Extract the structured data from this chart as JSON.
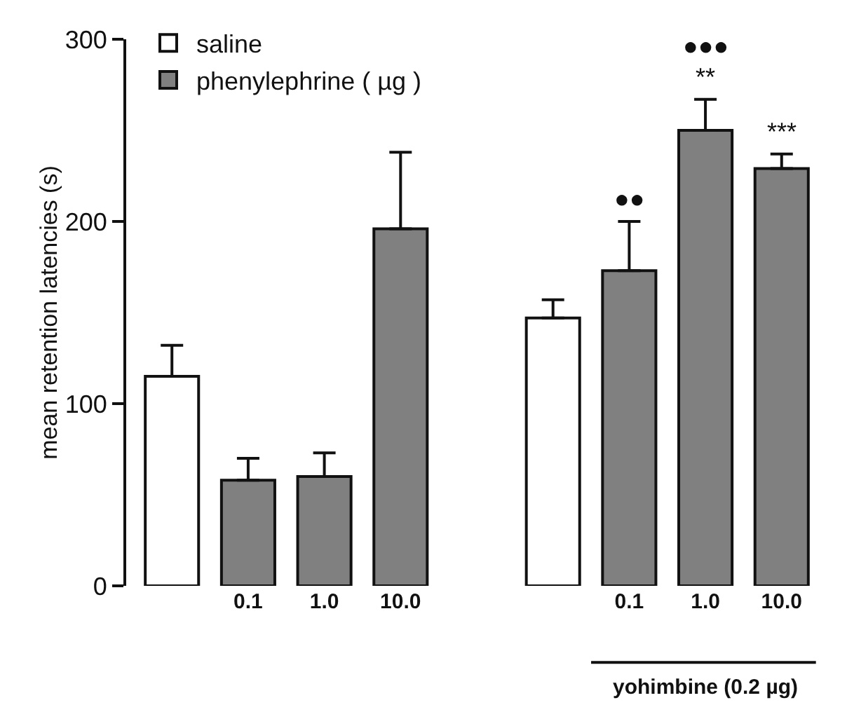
{
  "chart_data": {
    "type": "bar",
    "ylabel": "mean retention latencies (s)",
    "categories": [
      null,
      "0.1",
      "1.0",
      "10.0",
      null,
      null,
      "0.1",
      "1.0",
      "10.0"
    ],
    "series": [
      {
        "name": "saline",
        "color": "#ffffff",
        "values": [
          115,
          null,
          null,
          null,
          null,
          147,
          null,
          null,
          null
        ],
        "errors": [
          [
            115,
            132
          ],
          null,
          null,
          null,
          null,
          [
            147,
            157
          ],
          null,
          null,
          null
        ]
      },
      {
        "name": "phenylephrine ( µg )",
        "color": "#808080",
        "values": [
          null,
          58,
          60,
          196,
          null,
          null,
          173,
          250,
          229
        ],
        "errors": [
          null,
          [
            58,
            70
          ],
          [
            60,
            73
          ],
          [
            196,
            238
          ],
          null,
          null,
          [
            173,
            200
          ],
          [
            250,
            267
          ],
          [
            229,
            237
          ]
        ]
      }
    ],
    "ylim": [
      0,
      300
    ],
    "yticks": [
      0,
      100,
      200,
      300
    ],
    "grid": false,
    "legend": "top left",
    "annotations": [
      "●●",
      "●●●",
      "**",
      "***",
      "yohimbine (0.2 µg)"
    ]
  }
}
